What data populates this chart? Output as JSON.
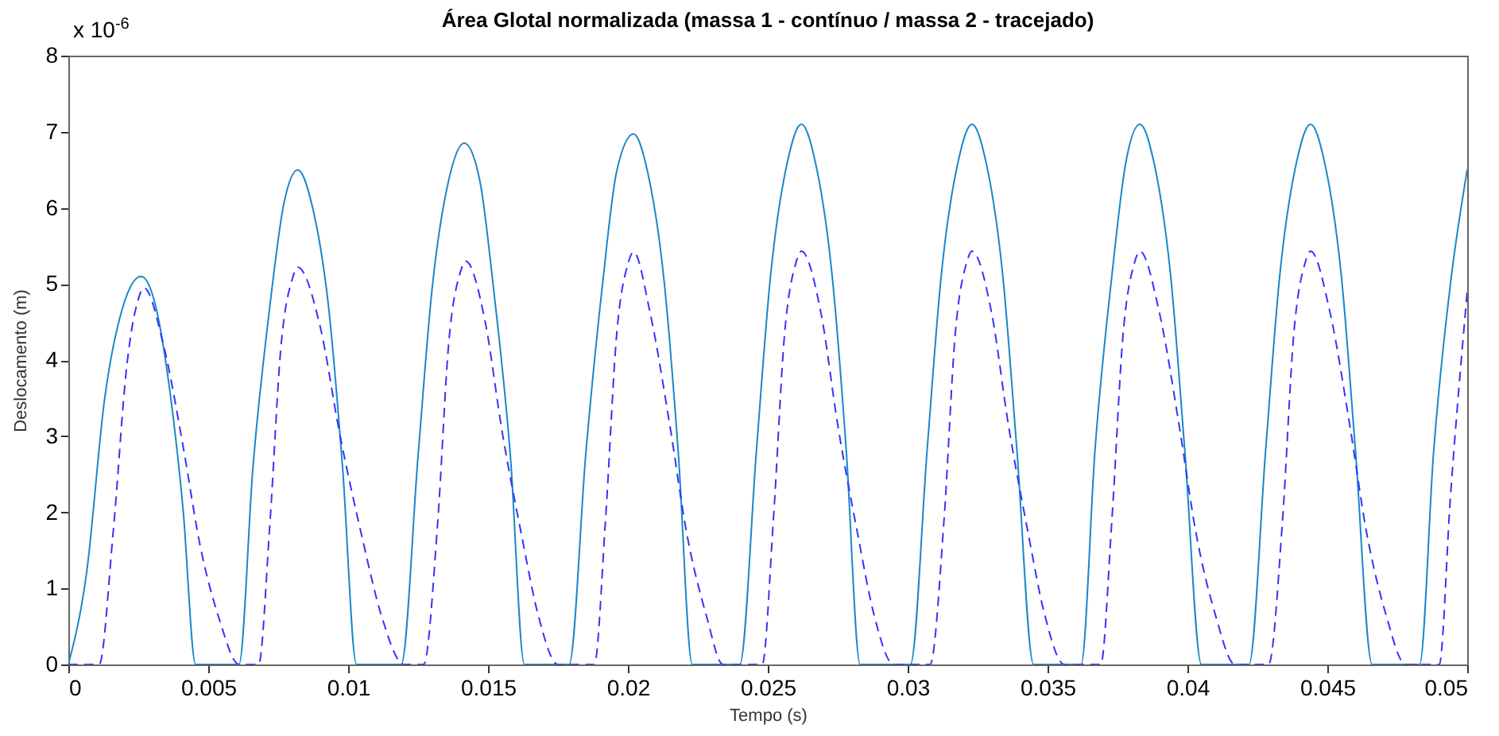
{
  "chart_data": {
    "type": "line",
    "title": "Área Glotal normalizada (massa 1 - contínuo / massa 2 - tracejado)",
    "xlabel": "Tempo (s)",
    "ylabel": "Deslocamento (m)",
    "annotations": [
      "x 10$^{-6}$"
    ],
    "xlim": [
      0,
      0.05
    ],
    "xticks": [
      0,
      0.005,
      0.01,
      0.015,
      0.02,
      0.025,
      0.03,
      0.035,
      0.04,
      0.045,
      0.05
    ],
    "ylim": [
      0,
      8
    ],
    "yticks": [
      0,
      1,
      2,
      3,
      4,
      5,
      6,
      7,
      8
    ],
    "grid": false,
    "series": [
      {
        "color": "#1a87c8",
        "line_style": "solid",
        "x": [
          0,
          0.00065,
          0.0013,
          0.00195,
          0.0026,
          0.0031,
          0.0036,
          0.0041,
          0.00455,
          0.0061,
          0.0066,
          0.0072,
          0.0077,
          0.0082,
          0.0087,
          0.0093,
          0.0098,
          0.0103,
          0.0119,
          0.0125,
          0.013,
          0.0136,
          0.01415,
          0.0147,
          0.0152,
          0.0158,
          0.0163,
          0.0179,
          0.0185,
          0.0191,
          0.0196,
          0.0202,
          0.0207,
          0.0213,
          0.0218,
          0.0223,
          0.024,
          0.0246,
          0.0251,
          0.0257,
          0.0262,
          0.0267,
          0.0273,
          0.0278,
          0.0283,
          0.0301,
          0.0307,
          0.0312,
          0.0318,
          0.0323,
          0.0328,
          0.0334,
          0.0339,
          0.0345,
          0.0362,
          0.0367,
          0.0373,
          0.0378,
          0.0383,
          0.0388,
          0.0394,
          0.0399,
          0.0405,
          0.0422,
          0.0428,
          0.0433,
          0.0439,
          0.0444,
          0.0449,
          0.0455,
          0.046,
          0.0466,
          0.0483,
          0.0488,
          0.0494,
          0.05
        ],
        "values": [
          0,
          1.2,
          3.5,
          4.7,
          5.1,
          4.74,
          3.67,
          2.04,
          0,
          0,
          2.6,
          4.7,
          6.05,
          6.5,
          6.05,
          4.7,
          2.6,
          0,
          0,
          2.74,
          4.93,
          6.37,
          6.85,
          6.37,
          4.93,
          2.74,
          0,
          0,
          2.79,
          5.02,
          6.48,
          6.97,
          6.48,
          5.02,
          2.79,
          0,
          0,
          2.84,
          5.11,
          6.6,
          7.1,
          6.6,
          5.11,
          2.84,
          0,
          0,
          2.84,
          5.11,
          6.6,
          7.1,
          6.6,
          5.11,
          2.84,
          0,
          0,
          2.84,
          5.11,
          6.6,
          7.1,
          6.6,
          5.11,
          2.84,
          0,
          0,
          2.84,
          5.11,
          6.6,
          7.1,
          6.6,
          5.11,
          2.84,
          0,
          0,
          2.8,
          5.0,
          6.5
        ]
      },
      {
        "color": "#3333ff",
        "line_style": "dashed",
        "x": [
          0,
          0.0011,
          0.0016,
          0.0021,
          0.0025,
          0.0027,
          0.0034,
          0.0041,
          0.0047,
          0.0054,
          0.0061,
          0.0068,
          0.0072,
          0.0076,
          0.008,
          0.0082,
          0.009,
          0.0097,
          0.0105,
          0.0112,
          0.012,
          0.0127,
          0.0132,
          0.0136,
          0.014,
          0.0142,
          0.0149,
          0.0155,
          0.0162,
          0.0168,
          0.0175,
          0.0188,
          0.0192,
          0.0196,
          0.02,
          0.0202,
          0.0208,
          0.0215,
          0.0221,
          0.0228,
          0.0234,
          0.0248,
          0.0252,
          0.0256,
          0.026,
          0.0262,
          0.0269,
          0.0275,
          0.0282,
          0.0288,
          0.0295,
          0.0308,
          0.0313,
          0.0317,
          0.0321,
          0.0323,
          0.033,
          0.0336,
          0.0343,
          0.0349,
          0.0356,
          0.0369,
          0.0373,
          0.0377,
          0.0381,
          0.0383,
          0.039,
          0.0397,
          0.0403,
          0.041,
          0.0417,
          0.0429,
          0.0434,
          0.0438,
          0.0442,
          0.0444,
          0.0451,
          0.0458,
          0.0464,
          0.0471,
          0.0478,
          0.049,
          0.0494,
          0.05
        ],
        "values": [
          0,
          0,
          1.73,
          3.96,
          4.8,
          4.95,
          4.2,
          2.87,
          1.58,
          0.59,
          0,
          0,
          1.83,
          4.18,
          5.06,
          5.22,
          4.44,
          3.03,
          1.67,
          0.63,
          0,
          0,
          1.86,
          4.24,
          5.14,
          5.3,
          4.5,
          3.07,
          1.7,
          0.64,
          0,
          0,
          1.9,
          4.34,
          5.26,
          5.42,
          4.61,
          3.14,
          1.73,
          0.65,
          0,
          0,
          1.9,
          4.34,
          5.27,
          5.43,
          4.62,
          3.15,
          1.74,
          0.65,
          0,
          0,
          1.9,
          4.34,
          5.27,
          5.43,
          4.62,
          3.15,
          1.74,
          0.65,
          0,
          0,
          1.9,
          4.34,
          5.27,
          5.43,
          4.62,
          3.15,
          1.74,
          0.65,
          0,
          0,
          1.9,
          4.34,
          5.27,
          5.43,
          4.62,
          3.15,
          1.74,
          0.65,
          0,
          0,
          2.2,
          4.9
        ]
      }
    ]
  }
}
